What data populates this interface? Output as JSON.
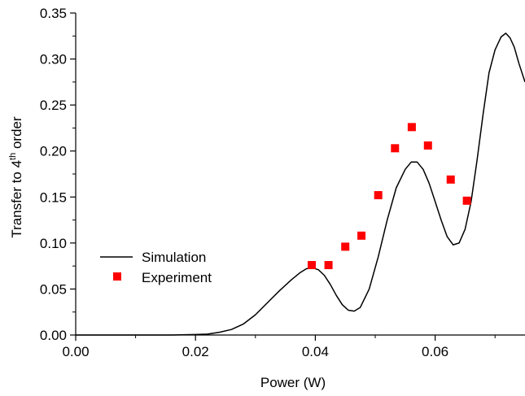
{
  "chart_data": {
    "type": "line",
    "xlabel": "Power (W)",
    "ylabel_parts": {
      "before": "Transfer to 4",
      "sup": "th",
      "after": " order"
    },
    "xlim": [
      0.0,
      0.075
    ],
    "ylim": [
      0.0,
      0.35
    ],
    "x_major_ticks": [
      0.0,
      0.02,
      0.04,
      0.06
    ],
    "x_tick_labels": [
      "0.00",
      "0.02",
      "0.04",
      "0.06"
    ],
    "x_minor_ticks": [
      0.01,
      0.03,
      0.05,
      0.07
    ],
    "y_major_ticks": [
      0.0,
      0.05,
      0.1,
      0.15,
      0.2,
      0.25,
      0.3,
      0.35
    ],
    "y_tick_labels": [
      "0.00",
      "0.05",
      "0.10",
      "0.15",
      "0.20",
      "0.25",
      "0.30",
      "0.35"
    ],
    "y_minor_ticks": [
      0.025,
      0.075,
      0.125,
      0.175,
      0.225,
      0.275,
      0.325
    ],
    "grid": false,
    "legend_position": "center-left",
    "series": [
      {
        "name": "Simulation",
        "style": "line",
        "color": "#000000",
        "x": [
          0.0,
          0.016,
          0.02,
          0.022,
          0.024,
          0.026,
          0.028,
          0.03,
          0.032,
          0.034,
          0.036,
          0.0375,
          0.0385,
          0.0395,
          0.0405,
          0.0415,
          0.0425,
          0.0435,
          0.0445,
          0.0455,
          0.0465,
          0.0475,
          0.049,
          0.0505,
          0.052,
          0.0535,
          0.055,
          0.056,
          0.057,
          0.058,
          0.059,
          0.06,
          0.061,
          0.062,
          0.063,
          0.064,
          0.065,
          0.066,
          0.067,
          0.068,
          0.069,
          0.07,
          0.071,
          0.0718,
          0.0725,
          0.0732,
          0.074,
          0.075
        ],
        "y": [
          0.0,
          0.0,
          0.0005,
          0.001,
          0.003,
          0.006,
          0.012,
          0.022,
          0.035,
          0.048,
          0.06,
          0.068,
          0.072,
          0.073,
          0.071,
          0.065,
          0.055,
          0.043,
          0.033,
          0.027,
          0.026,
          0.03,
          0.05,
          0.085,
          0.125,
          0.16,
          0.18,
          0.188,
          0.188,
          0.18,
          0.165,
          0.145,
          0.125,
          0.107,
          0.098,
          0.1,
          0.115,
          0.145,
          0.19,
          0.24,
          0.285,
          0.31,
          0.324,
          0.328,
          0.323,
          0.313,
          0.295,
          0.275
        ]
      },
      {
        "name": "Experiment",
        "style": "markers",
        "color": "#ff0000",
        "x": [
          0.0394,
          0.0422,
          0.045,
          0.0477,
          0.0505,
          0.0533,
          0.0561,
          0.0588,
          0.0626,
          0.0653
        ],
        "y": [
          0.076,
          0.076,
          0.096,
          0.108,
          0.152,
          0.203,
          0.226,
          0.206,
          0.169,
          0.146
        ]
      }
    ]
  }
}
